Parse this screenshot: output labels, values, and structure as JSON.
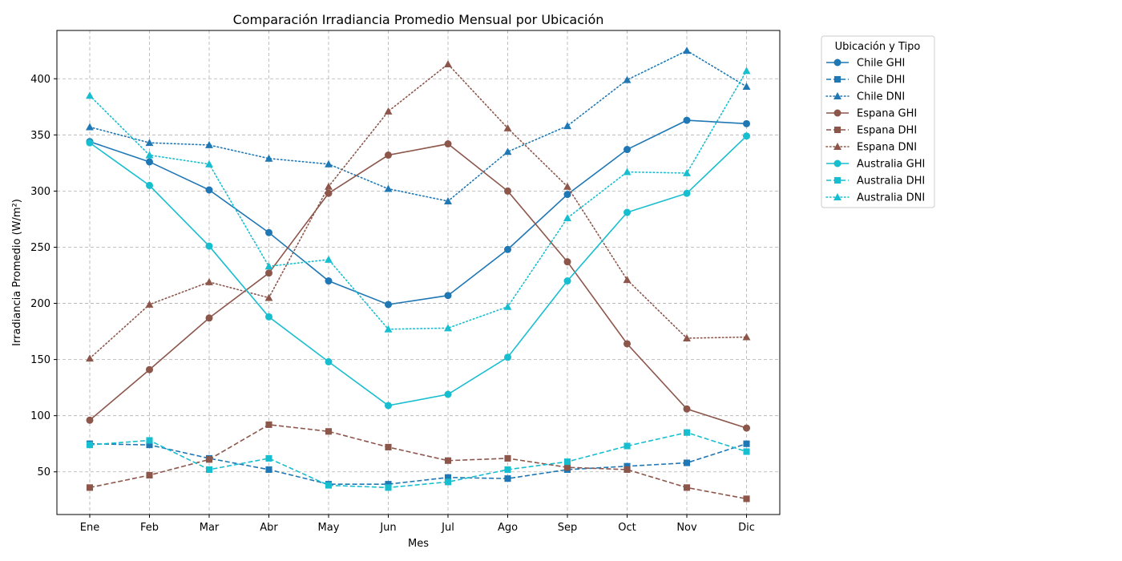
{
  "chart_data": {
    "type": "line",
    "title": "Comparación Irradiancia Promedio Mensual por Ubicación",
    "xlabel": "Mes",
    "ylabel": "Irradiancia Promedio (W/m²)",
    "categories": [
      "Ene",
      "Feb",
      "Mar",
      "Abr",
      "May",
      "Jun",
      "Jul",
      "Ago",
      "Sep",
      "Oct",
      "Nov",
      "Dic"
    ],
    "ylim": [
      12,
      443
    ],
    "yticks": [
      50,
      100,
      150,
      200,
      250,
      300,
      350,
      400
    ],
    "grid": true,
    "legend": {
      "title": "Ubicación y Tipo",
      "placement": "outside-top-right"
    },
    "series": [
      {
        "name": "Chile GHI",
        "color": "#1f77b4",
        "line": "solid",
        "marker": "circle",
        "values": [
          344,
          326,
          301,
          263,
          220,
          199,
          207,
          248,
          297,
          337,
          363,
          360
        ]
      },
      {
        "name": "Chile DHI",
        "color": "#1f77b4",
        "line": "dashed",
        "marker": "square",
        "values": [
          75,
          74,
          62,
          52,
          39,
          39,
          45,
          44,
          52,
          55,
          58,
          75
        ]
      },
      {
        "name": "Chile DNI",
        "color": "#1f77b4",
        "line": "dotted",
        "marker": "triangle",
        "values": [
          357,
          343,
          341,
          329,
          324,
          302,
          291,
          335,
          358,
          399,
          425,
          393
        ]
      },
      {
        "name": "Espana GHI",
        "color": "#8c564b",
        "line": "solid",
        "marker": "circle",
        "values": [
          96,
          141,
          187,
          227,
          298,
          332,
          342,
          300,
          237,
          164,
          106,
          89
        ]
      },
      {
        "name": "Espana DHI",
        "color": "#8c564b",
        "line": "dashed",
        "marker": "square",
        "values": [
          36,
          47,
          61,
          92,
          86,
          72,
          60,
          62,
          54,
          52,
          36,
          26
        ]
      },
      {
        "name": "Espana DNI",
        "color": "#8c564b",
        "line": "dotted",
        "marker": "triangle",
        "values": [
          151,
          199,
          219,
          205,
          304,
          371,
          413,
          356,
          304,
          221,
          169,
          170
        ]
      },
      {
        "name": "Australia GHI",
        "color": "#17becf",
        "line": "solid",
        "marker": "circle",
        "values": [
          343,
          305,
          251,
          188,
          148,
          109,
          119,
          152,
          220,
          281,
          298,
          349
        ]
      },
      {
        "name": "Australia DHI",
        "color": "#17becf",
        "line": "dashed",
        "marker": "square",
        "values": [
          74,
          78,
          52,
          62,
          38,
          36,
          41,
          52,
          59,
          73,
          85,
          68
        ]
      },
      {
        "name": "Australia DNI",
        "color": "#17becf",
        "line": "dotted",
        "marker": "triangle",
        "values": [
          385,
          332,
          324,
          233,
          239,
          177,
          178,
          197,
          276,
          317,
          316,
          407
        ]
      }
    ]
  }
}
